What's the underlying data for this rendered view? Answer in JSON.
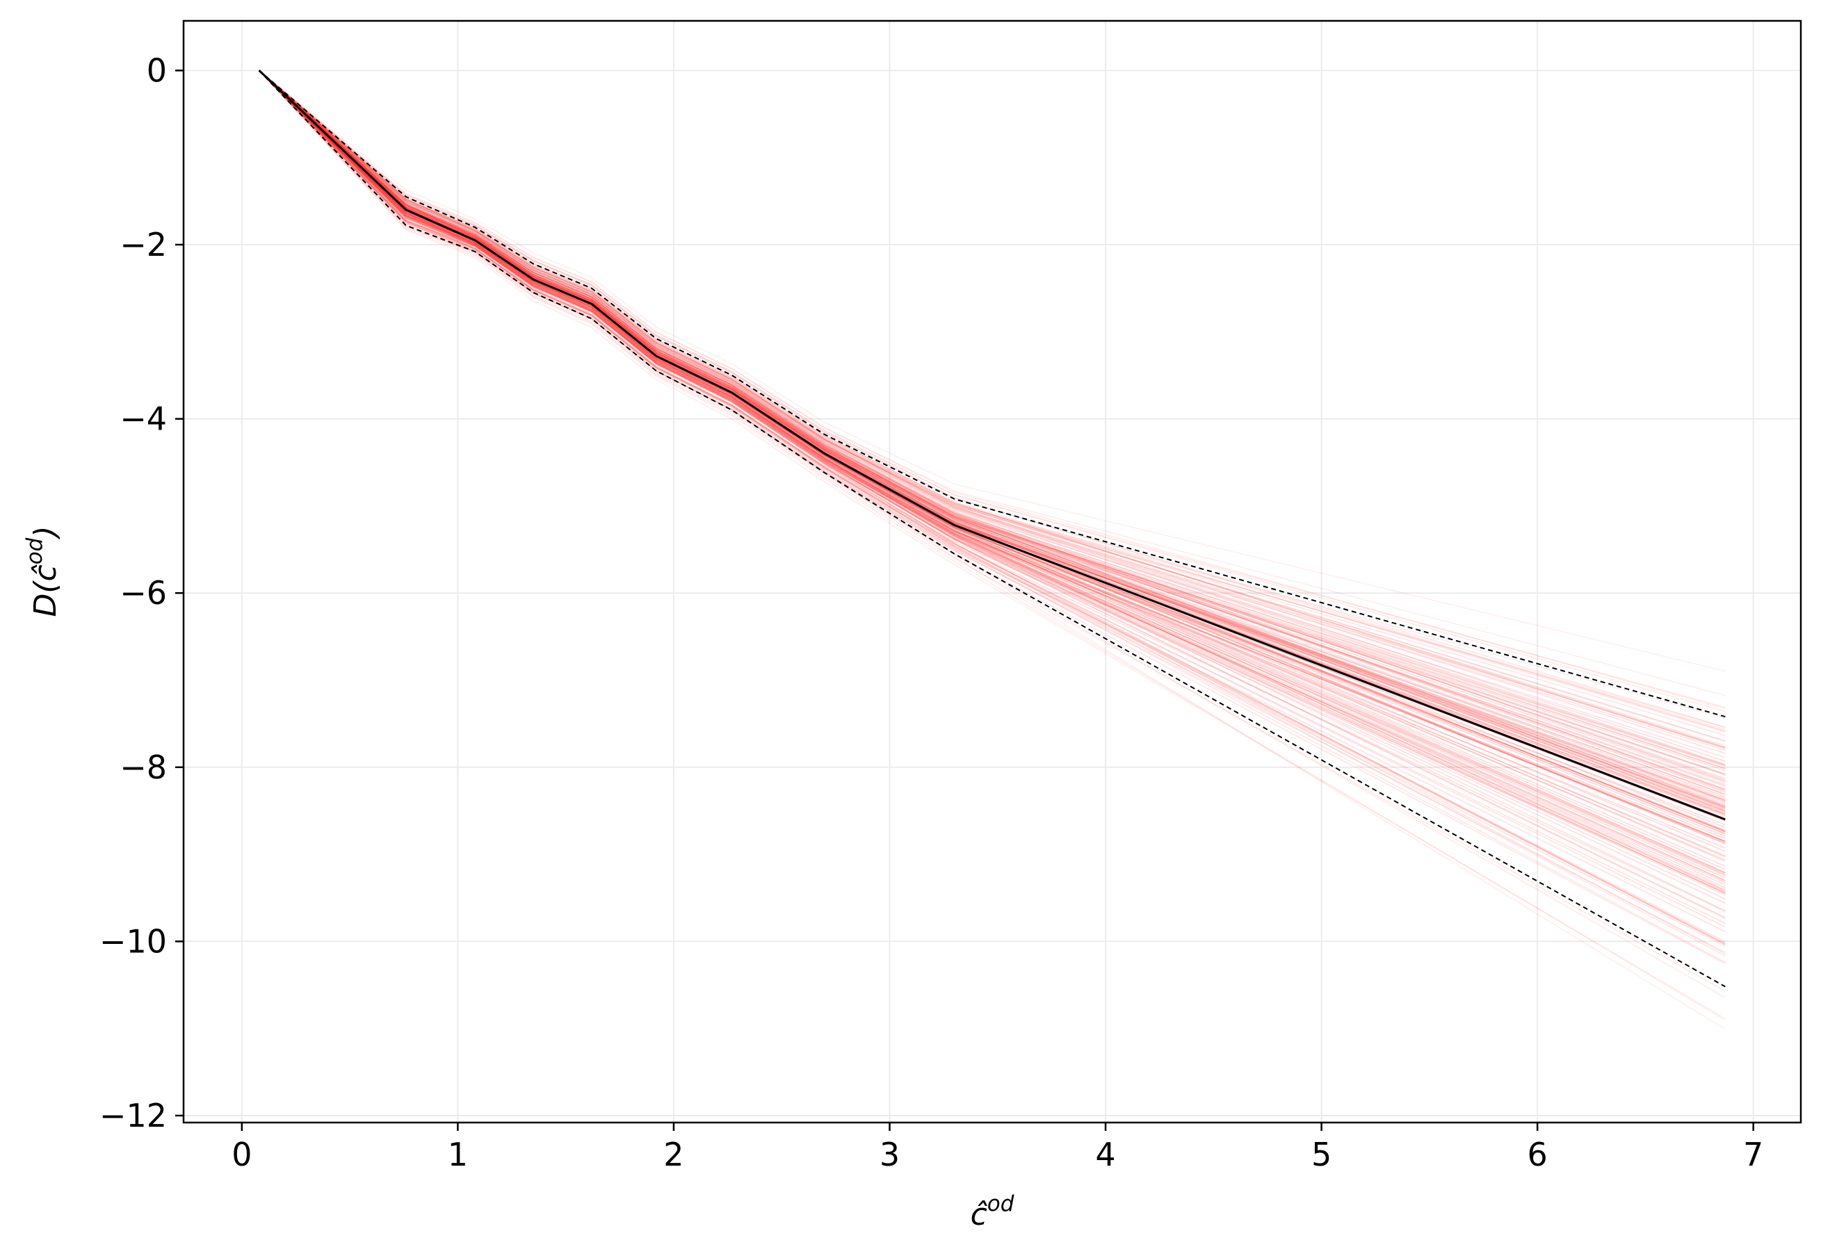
{
  "chart_data": {
    "type": "line",
    "xlabel": {
      "base": "ĉ",
      "sup": "od"
    },
    "ylabel": {
      "prefix": "D(",
      "base": "ĉ",
      "sup": "od",
      "suffix": ")"
    },
    "xlim": [
      -0.27,
      7.22
    ],
    "ylim": [
      -12.08,
      0.57
    ],
    "x_ticks": [
      0,
      1,
      2,
      3,
      4,
      5,
      6,
      7
    ],
    "y_ticks": [
      0,
      -2,
      -4,
      -6,
      -8,
      -10,
      -12
    ],
    "x_tick_labels": [
      "0",
      "1",
      "2",
      "3",
      "4",
      "5",
      "6",
      "7"
    ],
    "y_tick_labels": [
      "0",
      "−2",
      "−4",
      "−6",
      "−8",
      "−10",
      "−12"
    ],
    "grid": true,
    "x": [
      0.08,
      0.76,
      1.08,
      1.35,
      1.62,
      1.92,
      2.27,
      2.7,
      3.3,
      6.87
    ],
    "series": [
      {
        "style": "solid",
        "values": [
          0,
          -1.6,
          -1.95,
          -2.4,
          -2.68,
          -3.28,
          -3.7,
          -4.4,
          -5.22,
          -8.6
        ]
      },
      {
        "style": "dashed",
        "values": [
          0,
          -1.45,
          -1.8,
          -2.22,
          -2.5,
          -3.08,
          -3.5,
          -4.18,
          -4.92,
          -7.42
        ]
      },
      {
        "style": "dashed",
        "values": [
          0,
          -1.78,
          -2.08,
          -2.55,
          -2.85,
          -3.45,
          -3.9,
          -4.62,
          -5.55,
          -10.52
        ]
      }
    ],
    "ensemble": {
      "color": "#ff2a2a",
      "count": 140,
      "end_min": -11.6,
      "end_max": -6.7
    },
    "colors": {
      "median": "#000000",
      "bounds": "#000000",
      "grid": "#ebebeb",
      "axes": "#000000"
    }
  }
}
